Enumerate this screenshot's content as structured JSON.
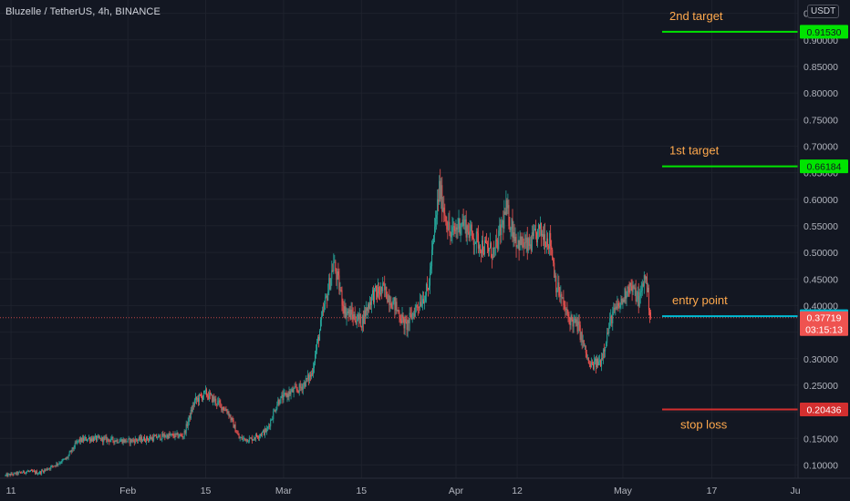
{
  "header": {
    "symbol": "Bluzelle / TetherUS",
    "interval": "4h",
    "exchange": "BINANCE",
    "currency": "USDT"
  },
  "colors": {
    "background": "#131722",
    "grid": "#1e222d",
    "up": "#26a69a",
    "down": "#ef5350",
    "target_green": "#00e400",
    "entry_cyan": "#00bcd4",
    "stop_red": "#d32f2f",
    "annotation_text": "#ffa94d"
  },
  "chart_data": {
    "type": "candlestick",
    "ylim": [
      0.075,
      0.975
    ],
    "y_ticks": [
      0.1,
      0.15,
      0.2,
      0.25,
      0.3,
      0.35,
      0.4,
      0.45,
      0.5,
      0.55,
      0.6,
      0.65,
      0.7,
      0.75,
      0.8,
      0.85,
      0.9,
      0.95
    ],
    "y_tick_labels": [
      "0.10000",
      "0.15000",
      "0.20000",
      "0.25000",
      "0.30000",
      "0.35000",
      "0.40000",
      "0.45000",
      "0.50000",
      "0.55000",
      "0.60000",
      "0.65000",
      "0.70000",
      "0.75000",
      "0.80000",
      "0.85000",
      "0.90000",
      "0.95000"
    ],
    "x_ticks": [
      {
        "label": "11",
        "date": "2021-01-11"
      },
      {
        "label": "Feb",
        "date": "2021-02-01"
      },
      {
        "label": "15",
        "date": "2021-02-15"
      },
      {
        "label": "Mar",
        "date": "2021-03-01"
      },
      {
        "label": "15",
        "date": "2021-03-15"
      },
      {
        "label": "Apr",
        "date": "2021-04-01"
      },
      {
        "label": "12",
        "date": "2021-04-12"
      },
      {
        "label": "May",
        "date": "2021-05-01"
      },
      {
        "label": "17",
        "date": "2021-05-17"
      },
      {
        "label": "Ju",
        "date": "2021-06-01"
      }
    ],
    "x_range": [
      "2021-01-10",
      "2021-06-01"
    ],
    "price_path": [
      [
        "2021-01-10",
        0.08
      ],
      [
        "2021-01-14",
        0.088
      ],
      [
        "2021-01-16",
        0.085
      ],
      [
        "2021-01-18",
        0.095
      ],
      [
        "2021-01-21",
        0.112
      ],
      [
        "2021-01-23",
        0.145
      ],
      [
        "2021-01-25",
        0.15
      ],
      [
        "2021-01-28",
        0.148
      ],
      [
        "2021-02-01",
        0.145
      ],
      [
        "2021-02-05",
        0.15
      ],
      [
        "2021-02-08",
        0.155
      ],
      [
        "2021-02-11",
        0.155
      ],
      [
        "2021-02-13",
        0.22
      ],
      [
        "2021-02-15",
        0.235
      ],
      [
        "2021-02-17",
        0.218
      ],
      [
        "2021-02-19",
        0.2
      ],
      [
        "2021-02-21",
        0.15
      ],
      [
        "2021-02-23",
        0.148
      ],
      [
        "2021-02-26",
        0.165
      ],
      [
        "2021-02-28",
        0.22
      ],
      [
        "2021-03-02",
        0.235
      ],
      [
        "2021-03-04",
        0.245
      ],
      [
        "2021-03-06",
        0.27
      ],
      [
        "2021-03-08",
        0.38
      ],
      [
        "2021-03-10",
        0.48
      ],
      [
        "2021-03-12",
        0.39
      ],
      [
        "2021-03-15",
        0.37
      ],
      [
        "2021-03-17",
        0.42
      ],
      [
        "2021-03-19",
        0.43
      ],
      [
        "2021-03-21",
        0.4
      ],
      [
        "2021-03-23",
        0.36
      ],
      [
        "2021-03-25",
        0.4
      ],
      [
        "2021-03-27",
        0.43
      ],
      [
        "2021-03-29",
        0.62
      ],
      [
        "2021-03-31",
        0.53
      ],
      [
        "2021-04-02",
        0.56
      ],
      [
        "2021-04-04",
        0.53
      ],
      [
        "2021-04-06",
        0.51
      ],
      [
        "2021-04-08",
        0.5
      ],
      [
        "2021-04-10",
        0.58
      ],
      [
        "2021-04-12",
        0.52
      ],
      [
        "2021-04-14",
        0.51
      ],
      [
        "2021-04-16",
        0.54
      ],
      [
        "2021-04-18",
        0.52
      ],
      [
        "2021-04-19",
        0.44
      ],
      [
        "2021-04-21",
        0.38
      ],
      [
        "2021-04-23",
        0.36
      ],
      [
        "2021-04-25",
        0.285
      ],
      [
        "2021-04-27",
        0.295
      ],
      [
        "2021-04-29",
        0.38
      ],
      [
        "2021-05-01",
        0.41
      ],
      [
        "2021-05-02",
        0.44
      ],
      [
        "2021-05-04",
        0.41
      ],
      [
        "2021-05-05",
        0.46
      ],
      [
        "2021-05-06",
        0.377
      ]
    ],
    "levels": [
      {
        "label": "2nd target",
        "value": 0.9153,
        "value_label": "0.91530",
        "kind": "target"
      },
      {
        "label": "1st target",
        "value": 0.66184,
        "value_label": "0.66184",
        "kind": "target"
      },
      {
        "label": "entry point",
        "value": 0.37999,
        "value_label": "0.37999",
        "kind": "entry"
      },
      {
        "label": "stop loss",
        "value": 0.20436,
        "value_label": "0.20436",
        "kind": "stop"
      }
    ],
    "current_price": {
      "value": 0.37719,
      "label": "0.37719",
      "countdown": "03:15:13"
    }
  }
}
